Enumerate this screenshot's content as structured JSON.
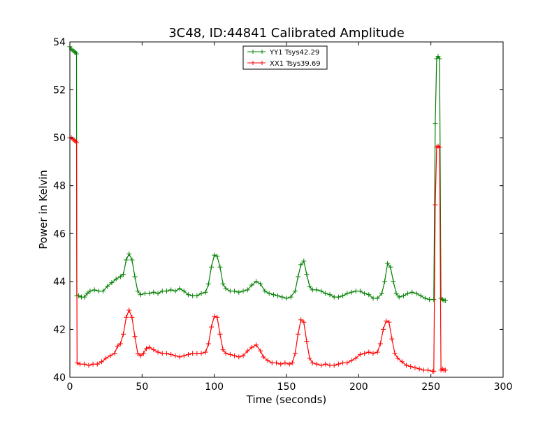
{
  "chart_data": {
    "type": "line",
    "title": "3C48, ID:44841 Calibrated Amplitude",
    "xlabel": "Time (seconds)",
    "ylabel": "Power in Kelvin",
    "xlim": [
      0,
      300
    ],
    "ylim": [
      40,
      54
    ],
    "xticks": [
      0,
      50,
      100,
      150,
      200,
      250,
      300
    ],
    "yticks": [
      40,
      42,
      44,
      46,
      48,
      50,
      52,
      54
    ],
    "grid": false,
    "legend_position": "top-center",
    "series": [
      {
        "name": "YY1 Tsys42.29",
        "color": "#008000",
        "marker": "+",
        "points": [
          [
            0,
            53.8
          ],
          [
            1,
            53.7
          ],
          [
            2,
            53.65
          ],
          [
            3,
            53.6
          ],
          [
            4,
            53.55
          ],
          [
            4.6,
            53.5
          ],
          [
            4.8,
            43.4
          ],
          [
            6,
            43.4
          ],
          [
            8,
            43.35
          ],
          [
            10,
            43.35
          ],
          [
            12,
            43.5
          ],
          [
            14,
            43.6
          ],
          [
            17,
            43.65
          ],
          [
            20,
            43.6
          ],
          [
            23,
            43.6
          ],
          [
            26,
            43.8
          ],
          [
            29,
            43.95
          ],
          [
            32,
            44.1
          ],
          [
            35,
            44.2
          ],
          [
            37,
            44.3
          ],
          [
            39,
            44.9
          ],
          [
            41,
            45.15
          ],
          [
            43,
            44.9
          ],
          [
            45,
            44.2
          ],
          [
            47,
            43.6
          ],
          [
            49,
            43.45
          ],
          [
            52,
            43.5
          ],
          [
            55,
            43.5
          ],
          [
            58,
            43.55
          ],
          [
            61,
            43.5
          ],
          [
            64,
            43.6
          ],
          [
            67,
            43.6
          ],
          [
            70,
            43.65
          ],
          [
            73,
            43.6
          ],
          [
            76,
            43.7
          ],
          [
            79,
            43.6
          ],
          [
            82,
            43.45
          ],
          [
            85,
            43.4
          ],
          [
            88,
            43.4
          ],
          [
            91,
            43.5
          ],
          [
            94,
            43.55
          ],
          [
            96,
            43.9
          ],
          [
            98,
            44.6
          ],
          [
            100,
            45.1
          ],
          [
            102,
            45.05
          ],
          [
            104,
            44.6
          ],
          [
            106,
            43.9
          ],
          [
            108,
            43.7
          ],
          [
            111,
            43.6
          ],
          [
            114,
            43.6
          ],
          [
            117,
            43.55
          ],
          [
            120,
            43.6
          ],
          [
            123,
            43.65
          ],
          [
            126,
            43.85
          ],
          [
            129,
            44.0
          ],
          [
            132,
            43.9
          ],
          [
            135,
            43.6
          ],
          [
            138,
            43.5
          ],
          [
            141,
            43.45
          ],
          [
            144,
            43.4
          ],
          [
            147,
            43.35
          ],
          [
            150,
            43.3
          ],
          [
            153,
            43.35
          ],
          [
            156,
            43.6
          ],
          [
            158,
            44.2
          ],
          [
            160,
            44.7
          ],
          [
            162,
            44.85
          ],
          [
            164,
            44.3
          ],
          [
            166,
            43.8
          ],
          [
            168,
            43.65
          ],
          [
            171,
            43.65
          ],
          [
            174,
            43.6
          ],
          [
            177,
            43.5
          ],
          [
            180,
            43.45
          ],
          [
            183,
            43.35
          ],
          [
            186,
            43.35
          ],
          [
            189,
            43.4
          ],
          [
            192,
            43.5
          ],
          [
            195,
            43.55
          ],
          [
            198,
            43.6
          ],
          [
            201,
            43.6
          ],
          [
            204,
            43.5
          ],
          [
            207,
            43.45
          ],
          [
            210,
            43.3
          ],
          [
            213,
            43.3
          ],
          [
            216,
            43.5
          ],
          [
            218,
            44.0
          ],
          [
            220,
            44.75
          ],
          [
            222,
            44.6
          ],
          [
            224,
            44.0
          ],
          [
            226,
            43.5
          ],
          [
            228,
            43.35
          ],
          [
            231,
            43.4
          ],
          [
            234,
            43.5
          ],
          [
            237,
            43.55
          ],
          [
            240,
            43.5
          ],
          [
            243,
            43.4
          ],
          [
            246,
            43.3
          ],
          [
            249,
            43.25
          ],
          [
            252,
            43.25
          ],
          [
            253,
            50.6
          ],
          [
            254,
            53.3
          ],
          [
            255,
            53.4
          ],
          [
            256,
            53.3
          ],
          [
            257,
            43.3
          ],
          [
            258,
            43.25
          ],
          [
            259,
            43.2
          ],
          [
            260,
            43.2
          ]
        ]
      },
      {
        "name": "XX1 Tsys39.69",
        "color": "#ff0000",
        "marker": "+",
        "points": [
          [
            0,
            50.0
          ],
          [
            1,
            50.0
          ],
          [
            2,
            49.95
          ],
          [
            3,
            49.9
          ],
          [
            4,
            49.85
          ],
          [
            4.6,
            49.8
          ],
          [
            5,
            40.6
          ],
          [
            7,
            40.55
          ],
          [
            10,
            40.55
          ],
          [
            13,
            40.5
          ],
          [
            16,
            40.55
          ],
          [
            19,
            40.55
          ],
          [
            22,
            40.65
          ],
          [
            25,
            40.8
          ],
          [
            28,
            40.9
          ],
          [
            31,
            41.0
          ],
          [
            33,
            41.3
          ],
          [
            35,
            41.4
          ],
          [
            37,
            41.8
          ],
          [
            39,
            42.5
          ],
          [
            41,
            42.8
          ],
          [
            43,
            42.5
          ],
          [
            45,
            41.7
          ],
          [
            47,
            41.0
          ],
          [
            49,
            40.9
          ],
          [
            51,
            41.0
          ],
          [
            53,
            41.2
          ],
          [
            55,
            41.25
          ],
          [
            58,
            41.15
          ],
          [
            61,
            41.05
          ],
          [
            64,
            41.0
          ],
          [
            67,
            41.0
          ],
          [
            70,
            40.95
          ],
          [
            73,
            40.9
          ],
          [
            76,
            40.85
          ],
          [
            79,
            40.9
          ],
          [
            82,
            40.95
          ],
          [
            85,
            41.0
          ],
          [
            88,
            41.0
          ],
          [
            91,
            41.0
          ],
          [
            94,
            41.05
          ],
          [
            96,
            41.4
          ],
          [
            98,
            42.1
          ],
          [
            100,
            42.55
          ],
          [
            102,
            42.5
          ],
          [
            104,
            41.8
          ],
          [
            106,
            41.15
          ],
          [
            108,
            41.0
          ],
          [
            111,
            40.95
          ],
          [
            114,
            40.9
          ],
          [
            117,
            40.85
          ],
          [
            120,
            40.9
          ],
          [
            123,
            41.1
          ],
          [
            126,
            41.25
          ],
          [
            129,
            41.35
          ],
          [
            132,
            41.1
          ],
          [
            134,
            40.85
          ],
          [
            137,
            40.7
          ],
          [
            140,
            40.6
          ],
          [
            143,
            40.6
          ],
          [
            146,
            40.55
          ],
          [
            149,
            40.6
          ],
          [
            152,
            40.55
          ],
          [
            154,
            40.6
          ],
          [
            156,
            41.0
          ],
          [
            158,
            41.8
          ],
          [
            160,
            42.4
          ],
          [
            162,
            42.3
          ],
          [
            164,
            41.5
          ],
          [
            166,
            40.8
          ],
          [
            168,
            40.6
          ],
          [
            171,
            40.55
          ],
          [
            174,
            40.5
          ],
          [
            177,
            40.55
          ],
          [
            180,
            40.5
          ],
          [
            183,
            40.5
          ],
          [
            186,
            40.55
          ],
          [
            189,
            40.6
          ],
          [
            192,
            40.6
          ],
          [
            195,
            40.7
          ],
          [
            198,
            40.8
          ],
          [
            201,
            40.95
          ],
          [
            204,
            41.0
          ],
          [
            207,
            41.05
          ],
          [
            210,
            41.0
          ],
          [
            213,
            41.05
          ],
          [
            215,
            41.4
          ],
          [
            217,
            42.0
          ],
          [
            219,
            42.35
          ],
          [
            221,
            42.3
          ],
          [
            223,
            41.6
          ],
          [
            225,
            41.0
          ],
          [
            227,
            40.8
          ],
          [
            230,
            40.65
          ],
          [
            233,
            40.5
          ],
          [
            236,
            40.45
          ],
          [
            239,
            40.4
          ],
          [
            242,
            40.35
          ],
          [
            245,
            40.3
          ],
          [
            248,
            40.3
          ],
          [
            251,
            40.25
          ],
          [
            252,
            40.25
          ],
          [
            253,
            47.2
          ],
          [
            254,
            49.6
          ],
          [
            255,
            49.65
          ],
          [
            256,
            49.6
          ],
          [
            257,
            40.3
          ],
          [
            258,
            40.35
          ],
          [
            259,
            40.3
          ],
          [
            260,
            40.3
          ]
        ]
      }
    ]
  }
}
